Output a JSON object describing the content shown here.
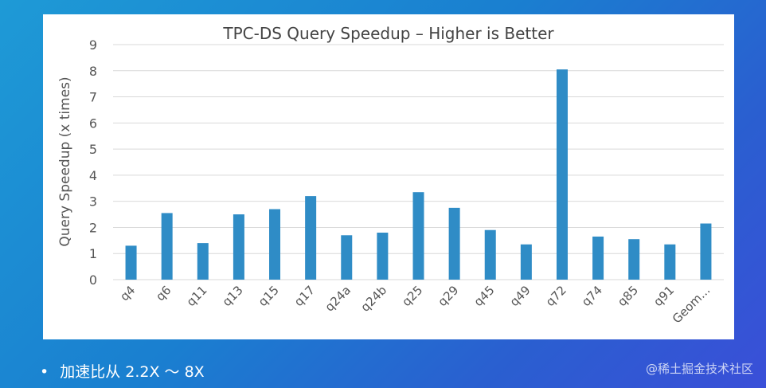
{
  "chart_data": {
    "type": "bar",
    "title": "TPC-DS Query Speedup – Higher is Better",
    "xlabel": "",
    "ylabel": "Query Speedup (x times)",
    "ylim": [
      0,
      9
    ],
    "yticks": [
      0,
      1,
      2,
      3,
      4,
      5,
      6,
      7,
      8,
      9
    ],
    "grid": true,
    "categories": [
      "q4",
      "q6",
      "q11",
      "q13",
      "q15",
      "q17",
      "q24a",
      "q24b",
      "q25",
      "q29",
      "q45",
      "q49",
      "q72",
      "q74",
      "q85",
      "q91",
      "Geom..."
    ],
    "values": [
      1.3,
      2.55,
      1.4,
      2.5,
      2.7,
      3.2,
      1.7,
      1.8,
      3.35,
      2.75,
      1.9,
      1.35,
      8.05,
      1.65,
      1.55,
      1.35,
      2.15
    ],
    "bar_color": "#2f8cc6"
  },
  "footer": {
    "bullet": "•",
    "text": "加速比从 2.2X ～ 8X"
  },
  "watermark": "@稀土掘金技术社区",
  "colors": {
    "background": "#1a7fd0",
    "card": "#ffffff",
    "bar": "#2f8cc6"
  }
}
